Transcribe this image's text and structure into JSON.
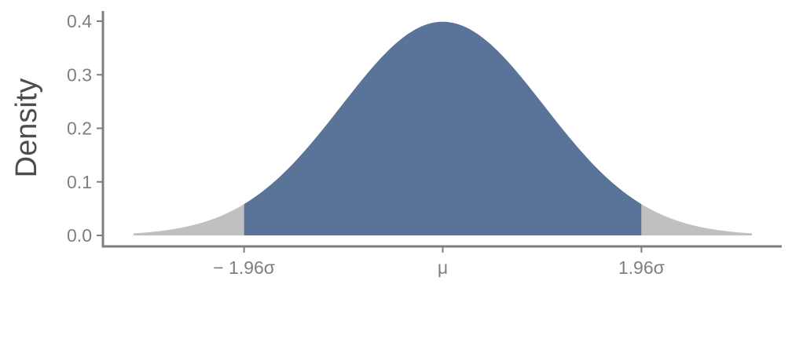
{
  "chart_data": {
    "type": "area",
    "title": "",
    "xlabel": "",
    "ylabel": "Density",
    "distribution": "normal",
    "mean": 0,
    "sd": 1,
    "xlim": [
      -3.05,
      3.05
    ],
    "ylim": [
      0,
      0.4
    ],
    "yticks": [
      0.0,
      0.1,
      0.2,
      0.3,
      0.4
    ],
    "ytick_labels": [
      "0.0",
      "0.1",
      "0.2",
      "0.3",
      "0.4"
    ],
    "xticks": [
      -1.96,
      0,
      1.96
    ],
    "xtick_labels": [
      "− 1.96σ",
      "μ",
      "1.96σ"
    ],
    "shaded_regions": [
      {
        "from": -3.05,
        "to": -1.96,
        "color": "#c0c0c0"
      },
      {
        "from": -1.96,
        "to": 1.96,
        "color": "#5a7398"
      },
      {
        "from": 1.96,
        "to": 3.05,
        "color": "#c0c0c0"
      }
    ],
    "grid": false,
    "legend": "none"
  },
  "colors": {
    "axis": "#7f7f7f",
    "tick_text": "#7f7f7f",
    "axis_title": "#4d4d4d"
  }
}
